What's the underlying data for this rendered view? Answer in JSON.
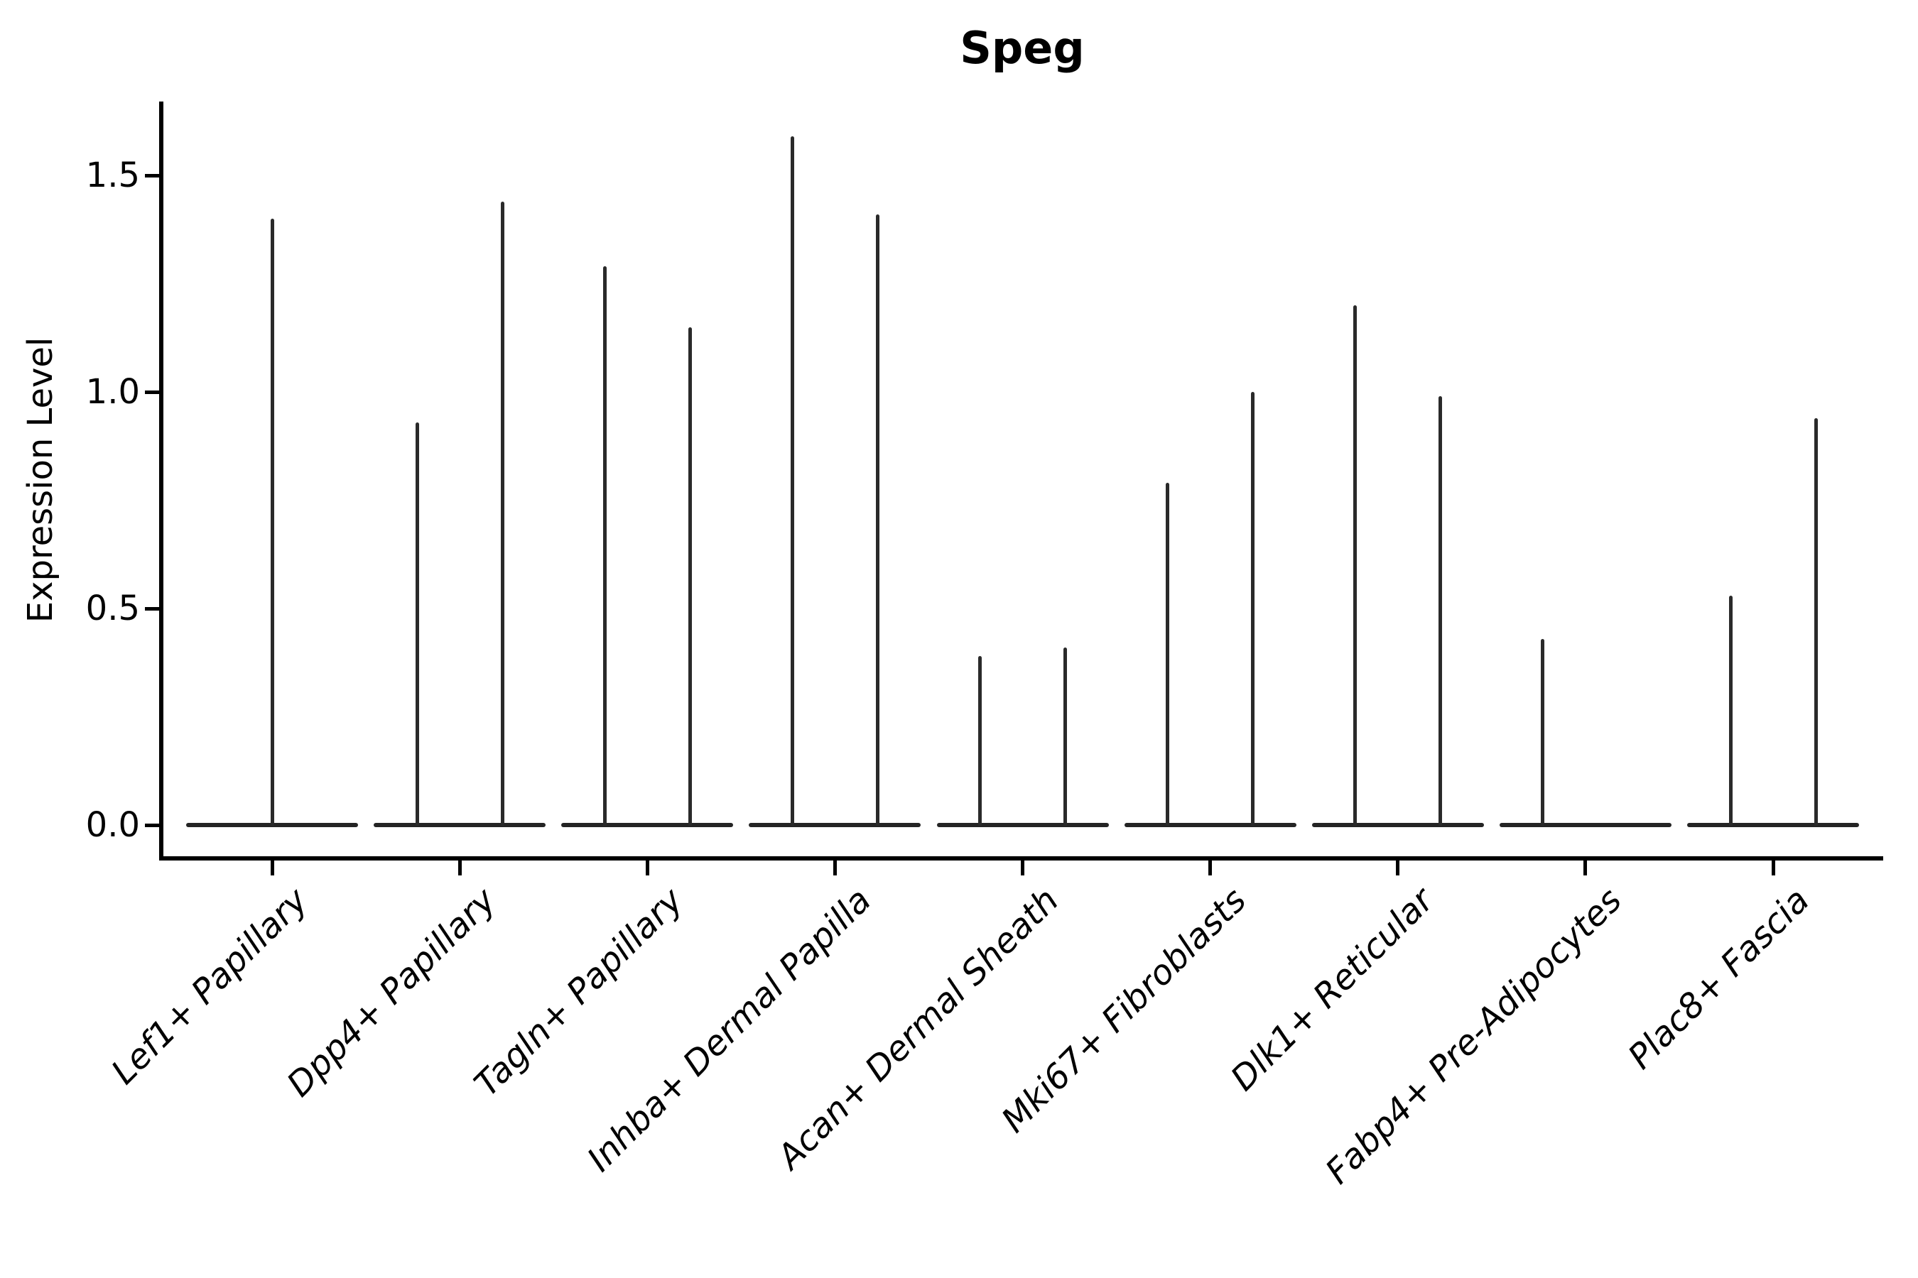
{
  "chart_data": {
    "type": "violin",
    "title": "Speg",
    "ylabel": "Expression Level",
    "xlabel": "",
    "ylim": [
      -0.08,
      1.67
    ],
    "yticks": [
      0.0,
      0.5,
      1.0,
      1.5
    ],
    "ytick_labels": [
      "0.0",
      "0.5",
      "1.0",
      "1.5"
    ],
    "grid": false,
    "legend": "none",
    "baseline_value": 0.0,
    "categories": [
      "Lef1+ Papillary",
      "Dpp4+ Papillary",
      "Tagln+ Papillary",
      "Inhba+ Dermal Papilla",
      "Acan+ Dermal Sheath",
      "Mki67+ Fibroblasts",
      "Dlk1+ Reticular",
      "Fabp4+ Pre-Adipocytes",
      "Plac8+ Fascia"
    ],
    "violins": [
      {
        "category_index": 0,
        "slot": "center",
        "max_expression": 1.4
      },
      {
        "category_index": 1,
        "slot": "left",
        "max_expression": 0.93
      },
      {
        "category_index": 1,
        "slot": "right",
        "max_expression": 1.44
      },
      {
        "category_index": 2,
        "slot": "left",
        "max_expression": 1.29
      },
      {
        "category_index": 2,
        "slot": "right",
        "max_expression": 1.15
      },
      {
        "category_index": 3,
        "slot": "left",
        "max_expression": 1.59
      },
      {
        "category_index": 3,
        "slot": "right",
        "max_expression": 1.41
      },
      {
        "category_index": 4,
        "slot": "left",
        "max_expression": 0.39
      },
      {
        "category_index": 4,
        "slot": "right",
        "max_expression": 0.41
      },
      {
        "category_index": 5,
        "slot": "left",
        "max_expression": 0.79
      },
      {
        "category_index": 5,
        "slot": "right",
        "max_expression": 1.0
      },
      {
        "category_index": 6,
        "slot": "left",
        "max_expression": 1.2
      },
      {
        "category_index": 6,
        "slot": "right",
        "max_expression": 0.99
      },
      {
        "category_index": 7,
        "slot": "left",
        "max_expression": 0.43
      },
      {
        "category_index": 8,
        "slot": "left",
        "max_expression": 0.53
      },
      {
        "category_index": 8,
        "slot": "right",
        "max_expression": 0.94
      }
    ],
    "colors": {
      "violin_stroke": "#2a2a2a",
      "violin_base": "#242424",
      "axis": "#000000",
      "text": "#000000",
      "background": "#ffffff"
    }
  }
}
